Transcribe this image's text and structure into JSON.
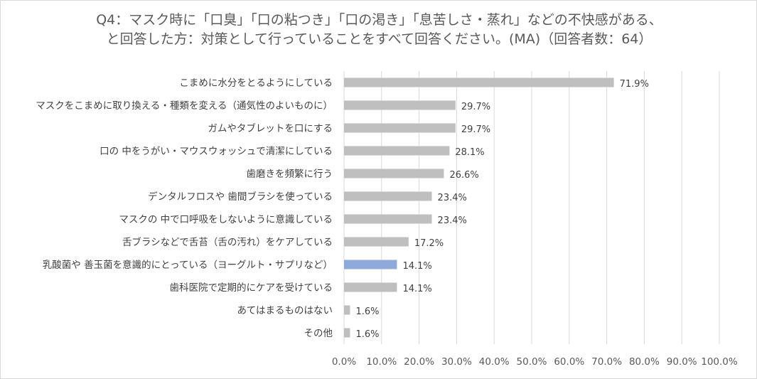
{
  "chart_data": {
    "type": "bar",
    "orientation": "horizontal",
    "title_lines": [
      "Q4：マスク時に「口臭」「口の粘つき」「口の渇き」「息苦しさ・蒸れ」などの不快感がある、",
      "と回答した方：対策として行っていることをすべて回答ください。(MA)（回答者数：64）"
    ],
    "categories": [
      "こまめに水分をとるようにしている",
      "マスクをこまめに取り換える・種類を変える（通気性のよいものに）",
      "ガムやタブレットを口にする",
      "口の 中をうがい・マウスウォッシュで清潔にしている",
      "歯磨きを頻繁に行う",
      "デンタルフロスや 歯間ブラシを使っている",
      "マスクの 中で口呼吸をしないように意識している",
      "舌ブラシなどで舌苔（舌の汚れ）をケアしている",
      "乳酸菌や 善玉菌を意識的にとっている（ヨーグルト・サプリなど）",
      "歯科医院で定期的にケアを受けている",
      "あてはまるものはない",
      "その他"
    ],
    "values": [
      71.9,
      29.7,
      29.7,
      28.1,
      26.6,
      23.4,
      23.4,
      17.2,
      14.1,
      14.1,
      1.6,
      1.6
    ],
    "value_labels": [
      "71.9%",
      "29.7%",
      "29.7%",
      "28.1%",
      "26.6%",
      "23.4%",
      "23.4%",
      "17.2%",
      "14.1%",
      "14.1%",
      "1.6%",
      "1.6%"
    ],
    "highlight_index": 8,
    "xlim": [
      0,
      100
    ],
    "x_ticks": [
      0,
      10,
      20,
      30,
      40,
      50,
      60,
      70,
      80,
      90,
      100
    ],
    "x_tick_labels": [
      "0.0%",
      "10.0%",
      "20.0%",
      "30.0%",
      "40.0%",
      "50.0%",
      "60.0%",
      "70.0%",
      "80.0%",
      "90.0%",
      "100.0%"
    ],
    "grid": true,
    "colors": {
      "bar": "#bfbfbf",
      "highlight": "#8eaadb",
      "grid": "#d9d9d9"
    }
  }
}
